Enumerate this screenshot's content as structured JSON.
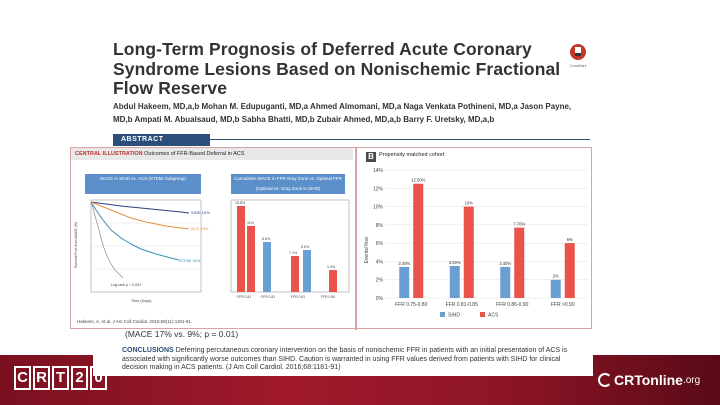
{
  "paper": {
    "title": "Long-Term Prognosis of Deferred Acute Coronary Syndrome Lesions Based on Nonischemic Fractional Flow Reserve",
    "authors": "Abdul Hakeem, MD,a,b Mohan M. Edupuganti, MD,a Ahmed Almomani, MD,a Naga Venkata Pothineni, MD,a Jason Payne, MD,b Ampati M. Abualsaud, MD,b Sabha Bhatti, MD,b Zubair Ahmed, MD,a,b Barry F. Uretsky, MD,a,b",
    "logo_caption": "CrossMark",
    "abstract_label": "ABSTRACT",
    "illustration_label": "CENTRAL ILLUSTRATION",
    "illustration_title": "Outcomes of FFR-Based Deferral in ACS",
    "citation": "Hakeem, A. et al. J Am Coll Cardiol. 2016;68(11):1181-91.",
    "mace_text": "(MACE 17% vs. 9%; p = 0.01)",
    "conclusions_label": "CONCLUSIONS",
    "conclusions_text": "Deferring percutaneous coronary intervention on the basis of nonischemic FFR in patients with an initial presentation of ACS is associated with significantly worse outcomes than SIHD. Caution is warranted in using FFR values derived from patients with SIHD for clinical decision making in ACS patients. (J Am Coll Cardiol. 2016;68:1181-91)"
  },
  "panel_a": {
    "left_box": "MACE in SIHD vs. ACS (STEMI Subgroup)",
    "right_box": "Cumulative MACE in FFR Gray Zone vs. Optimal FFR (Optimal vs. Gray Zone in SIHD)",
    "curve_labels": [
      "SIHD 10%",
      "ACS 18%",
      "STEMI 34%"
    ],
    "log_rank": "Log-rank p = 0.001",
    "xlabel": "Time (Days)",
    "ylabel": "Survival Free from MACE (%)",
    "bar_labels": [
      "15.8%",
      "11%",
      "6.6%",
      "7.1%",
      "5.6%",
      "1.9%"
    ],
    "bar_categories": [
      "FFR 0.81",
      "FFR 0.81",
      "FFR 0.81",
      "FFR 0.80"
    ]
  },
  "chart_data": {
    "type": "bar",
    "title": "Propensity matched cohort",
    "ylabel": "Events/Year",
    "categories": [
      "FFR 0.75-0.80",
      "FFR 0.81-0.85",
      "FFR 0.86-0.90",
      "FFR >0.90"
    ],
    "ylim": [
      0,
      14
    ],
    "yticks": [
      "0%",
      "2%",
      "4%",
      "6%",
      "8%",
      "10%",
      "12%",
      "14%"
    ],
    "series": [
      {
        "name": "SIHD",
        "values": [
          3.4,
          3.5,
          3.4,
          2.0
        ],
        "labels": [
          "3.40%",
          "3.50%",
          "3.40%",
          "2%"
        ],
        "color": "#6a9fd4"
      },
      {
        "name": "ACS",
        "values": [
          12.5,
          10.0,
          7.7,
          6.0
        ],
        "labels": [
          "12.50%",
          "10%",
          "7.70%",
          "6%"
        ],
        "color": "#e8544a"
      }
    ]
  },
  "branding": {
    "left_logo": [
      "C",
      "R",
      "T",
      "2",
      "0"
    ],
    "right_logo_main": "CRTonline",
    "right_logo_suffix": ".org"
  }
}
